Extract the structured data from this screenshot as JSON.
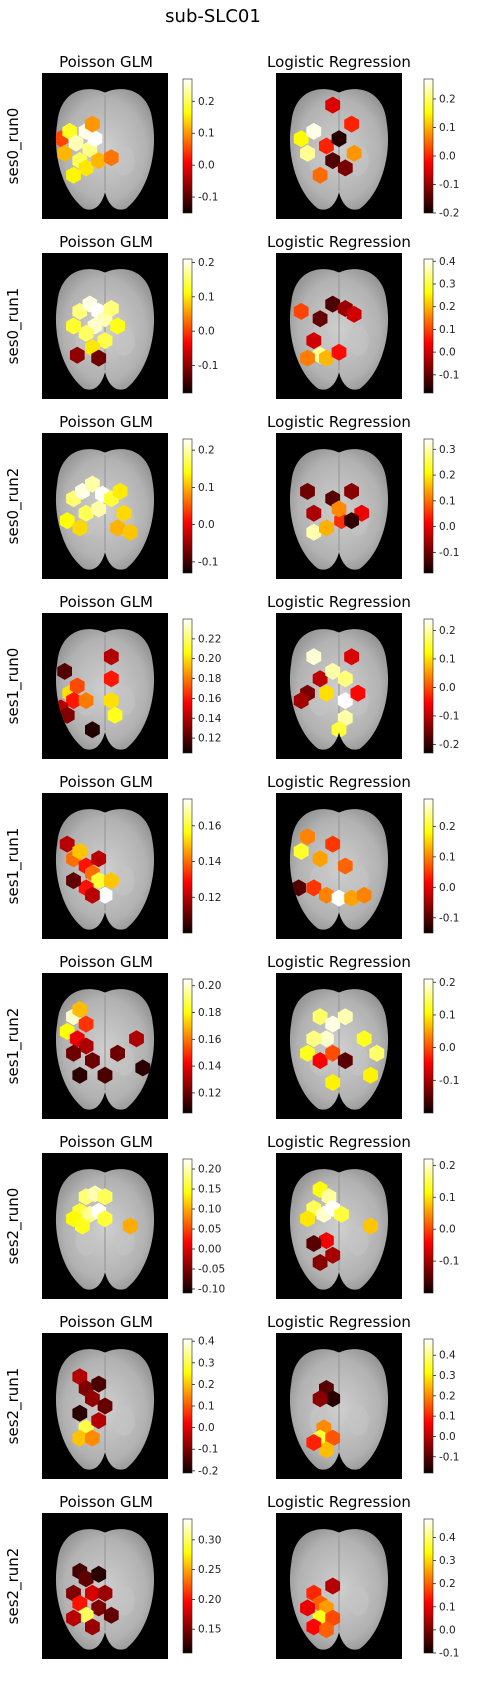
{
  "figure_title": "sub-SLC01",
  "colormap": "hot",
  "chart_data": [
    {
      "type": "heatmap",
      "row": "ses0_run0",
      "title": "Poisson GLM",
      "colorbar": {
        "vmin": -0.15,
        "vmax": 0.27,
        "ticks": [
          "0.2",
          "0.1",
          "0.0",
          "-0.1"
        ]
      },
      "blobs": [
        [
          0.15,
          0.45,
          0.05
        ],
        [
          0.18,
          0.55,
          0.12
        ],
        [
          0.22,
          0.4,
          0.18
        ],
        [
          0.27,
          0.48,
          0.24
        ],
        [
          0.3,
          0.6,
          0.2
        ],
        [
          0.35,
          0.4,
          0.26
        ],
        [
          0.38,
          0.52,
          0.22
        ],
        [
          0.42,
          0.45,
          0.27
        ],
        [
          0.35,
          0.65,
          0.15
        ],
        [
          0.45,
          0.6,
          0.12
        ],
        [
          0.55,
          0.58,
          0.08
        ],
        [
          0.25,
          0.7,
          0.16
        ],
        [
          0.4,
          0.35,
          0.1
        ]
      ]
    },
    {
      "type": "heatmap",
      "row": "ses0_run0",
      "title": "Logistic Regression",
      "colorbar": {
        "vmin": -0.2,
        "vmax": 0.27,
        "ticks": [
          "0.2",
          "0.1",
          "0.0",
          "-0.1",
          "-0.2"
        ]
      },
      "blobs": [
        [
          0.45,
          0.22,
          -0.05
        ],
        [
          0.2,
          0.45,
          0.15
        ],
        [
          0.25,
          0.55,
          0.22
        ],
        [
          0.3,
          0.4,
          0.26
        ],
        [
          0.4,
          0.5,
          0.0
        ],
        [
          0.45,
          0.6,
          -0.15
        ],
        [
          0.5,
          0.45,
          -0.18
        ],
        [
          0.55,
          0.65,
          -0.12
        ],
        [
          0.62,
          0.55,
          0.08
        ],
        [
          0.6,
          0.35,
          0.0
        ],
        [
          0.35,
          0.7,
          0.05
        ]
      ]
    },
    {
      "type": "heatmap",
      "row": "ses0_run1",
      "title": "Poisson GLM",
      "colorbar": {
        "vmin": -0.18,
        "vmax": 0.21,
        "ticks": [
          "0.2",
          "0.1",
          "0.0",
          "-0.1"
        ]
      },
      "blobs": [
        [
          0.3,
          0.4,
          0.16
        ],
        [
          0.38,
          0.35,
          0.2
        ],
        [
          0.45,
          0.4,
          0.21
        ],
        [
          0.5,
          0.45,
          0.18
        ],
        [
          0.55,
          0.38,
          0.16
        ],
        [
          0.42,
          0.5,
          0.19
        ],
        [
          0.35,
          0.55,
          0.15
        ],
        [
          0.25,
          0.5,
          0.13
        ],
        [
          0.6,
          0.5,
          0.12
        ],
        [
          0.5,
          0.6,
          0.14
        ],
        [
          0.4,
          0.65,
          0.1
        ],
        [
          0.28,
          0.7,
          -0.1
        ],
        [
          0.45,
          0.72,
          -0.12
        ]
      ]
    },
    {
      "type": "heatmap",
      "row": "ses0_run1",
      "title": "Logistic Regression",
      "colorbar": {
        "vmin": -0.18,
        "vmax": 0.41,
        "ticks": [
          "0.4",
          "0.3",
          "0.2",
          "0.1",
          "0.0",
          "-0.1"
        ]
      },
      "blobs": [
        [
          0.2,
          0.4,
          0.1
        ],
        [
          0.35,
          0.45,
          -0.1
        ],
        [
          0.45,
          0.35,
          -0.12
        ],
        [
          0.55,
          0.38,
          -0.05
        ],
        [
          0.62,
          0.42,
          0.0
        ],
        [
          0.3,
          0.6,
          0.0
        ],
        [
          0.35,
          0.7,
          0.35
        ],
        [
          0.25,
          0.72,
          0.15
        ],
        [
          0.4,
          0.72,
          0.2
        ],
        [
          0.5,
          0.68,
          0.05
        ]
      ]
    },
    {
      "type": "heatmap",
      "row": "ses0_run2",
      "title": "Poisson GLM",
      "colorbar": {
        "vmin": -0.13,
        "vmax": 0.23,
        "ticks": [
          "0.2",
          "0.1",
          "0.0",
          "-0.1"
        ]
      },
      "blobs": [
        [
          0.25,
          0.45,
          0.18
        ],
        [
          0.32,
          0.4,
          0.22
        ],
        [
          0.4,
          0.35,
          0.2
        ],
        [
          0.48,
          0.42,
          0.23
        ],
        [
          0.55,
          0.45,
          0.16
        ],
        [
          0.62,
          0.4,
          0.13
        ],
        [
          0.35,
          0.55,
          0.17
        ],
        [
          0.45,
          0.52,
          0.2
        ],
        [
          0.65,
          0.55,
          0.12
        ],
        [
          0.6,
          0.65,
          0.1
        ],
        [
          0.7,
          0.68,
          0.11
        ],
        [
          0.2,
          0.6,
          0.14
        ],
        [
          0.3,
          0.65,
          0.12
        ]
      ]
    },
    {
      "type": "heatmap",
      "row": "ses0_run2",
      "title": "Logistic Regression",
      "colorbar": {
        "vmin": -0.18,
        "vmax": 0.34,
        "ticks": [
          "0.3",
          "0.2",
          "0.1",
          "0.0",
          "-0.1"
        ]
      },
      "blobs": [
        [
          0.25,
          0.4,
          -0.1
        ],
        [
          0.3,
          0.55,
          -0.05
        ],
        [
          0.45,
          0.45,
          -0.12
        ],
        [
          0.52,
          0.6,
          0.05
        ],
        [
          0.6,
          0.4,
          -0.08
        ],
        [
          0.68,
          0.55,
          0.0
        ],
        [
          0.3,
          0.68,
          0.3
        ],
        [
          0.4,
          0.65,
          0.15
        ],
        [
          0.5,
          0.52,
          0.12
        ],
        [
          0.6,
          0.6,
          -0.15
        ]
      ]
    },
    {
      "type": "heatmap",
      "row": "ses1_run0",
      "title": "Poisson GLM",
      "colorbar": {
        "vmin": 0.105,
        "vmax": 0.24,
        "ticks": [
          "0.22",
          "0.20",
          "0.18",
          "0.16",
          "0.14",
          "0.12"
        ]
      },
      "blobs": [
        [
          0.18,
          0.4,
          0.12
        ],
        [
          0.22,
          0.55,
          0.2
        ],
        [
          0.28,
          0.5,
          0.17
        ],
        [
          0.25,
          0.6,
          0.16
        ],
        [
          0.35,
          0.6,
          0.18
        ],
        [
          0.15,
          0.65,
          0.14
        ],
        [
          0.2,
          0.7,
          0.13
        ],
        [
          0.55,
          0.3,
          0.14
        ],
        [
          0.55,
          0.45,
          0.16
        ],
        [
          0.55,
          0.6,
          0.2
        ],
        [
          0.58,
          0.7,
          0.21
        ],
        [
          0.4,
          0.8,
          0.11
        ]
      ]
    },
    {
      "type": "heatmap",
      "row": "ses1_run0",
      "title": "Logistic Regression",
      "colorbar": {
        "vmin": -0.23,
        "vmax": 0.24,
        "ticks": [
          "0.2",
          "0.1",
          "0.0",
          "-0.1",
          "-0.2"
        ]
      },
      "blobs": [
        [
          0.3,
          0.3,
          0.22
        ],
        [
          0.35,
          0.45,
          -0.1
        ],
        [
          0.25,
          0.55,
          -0.15
        ],
        [
          0.2,
          0.6,
          -0.12
        ],
        [
          0.45,
          0.4,
          0.2
        ],
        [
          0.55,
          0.45,
          0.18
        ],
        [
          0.4,
          0.55,
          0.1
        ],
        [
          0.55,
          0.6,
          0.24
        ],
        [
          0.55,
          0.72,
          0.2
        ],
        [
          0.5,
          0.8,
          0.15
        ],
        [
          0.65,
          0.55,
          -0.05
        ],
        [
          0.6,
          0.3,
          -0.08
        ]
      ]
    },
    {
      "type": "heatmap",
      "row": "ses1_run1",
      "title": "Poisson GLM",
      "colorbar": {
        "vmin": 0.1,
        "vmax": 0.175,
        "ticks": [
          "0.16",
          "0.14",
          "0.12"
        ]
      },
      "blobs": [
        [
          0.2,
          0.35,
          0.12
        ],
        [
          0.25,
          0.45,
          0.14
        ],
        [
          0.3,
          0.4,
          0.15
        ],
        [
          0.35,
          0.5,
          0.13
        ],
        [
          0.4,
          0.55,
          0.14
        ],
        [
          0.45,
          0.6,
          0.16
        ],
        [
          0.35,
          0.65,
          0.13
        ],
        [
          0.25,
          0.6,
          0.11
        ],
        [
          0.5,
          0.7,
          0.175
        ],
        [
          0.4,
          0.7,
          0.12
        ],
        [
          0.55,
          0.6,
          0.15
        ],
        [
          0.45,
          0.45,
          0.12
        ]
      ]
    },
    {
      "type": "heatmap",
      "row": "ses1_run1",
      "title": "Logistic Regression",
      "colorbar": {
        "vmin": -0.15,
        "vmax": 0.29,
        "ticks": [
          "0.2",
          "0.1",
          "0.0",
          "-0.1"
        ]
      },
      "blobs": [
        [
          0.2,
          0.4,
          0.2
        ],
        [
          0.25,
          0.3,
          0.1
        ],
        [
          0.35,
          0.45,
          0.12
        ],
        [
          0.45,
          0.35,
          0.05
        ],
        [
          0.55,
          0.5,
          0.08
        ],
        [
          0.3,
          0.65,
          0.05
        ],
        [
          0.4,
          0.7,
          0.1
        ],
        [
          0.5,
          0.72,
          0.29
        ],
        [
          0.6,
          0.72,
          0.12
        ],
        [
          0.7,
          0.7,
          0.1
        ],
        [
          0.18,
          0.65,
          -0.1
        ]
      ]
    },
    {
      "type": "heatmap",
      "row": "ses1_run2",
      "title": "Poisson GLM",
      "colorbar": {
        "vmin": 0.105,
        "vmax": 0.205,
        "ticks": [
          "0.20",
          "0.18",
          "0.16",
          "0.14",
          "0.12"
        ]
      },
      "blobs": [
        [
          0.25,
          0.3,
          0.2
        ],
        [
          0.3,
          0.25,
          0.17
        ],
        [
          0.35,
          0.35,
          0.15
        ],
        [
          0.2,
          0.4,
          0.18
        ],
        [
          0.28,
          0.45,
          0.14
        ],
        [
          0.35,
          0.5,
          0.13
        ],
        [
          0.25,
          0.55,
          0.12
        ],
        [
          0.4,
          0.6,
          0.12
        ],
        [
          0.5,
          0.7,
          0.115
        ],
        [
          0.6,
          0.55,
          0.12
        ],
        [
          0.75,
          0.45,
          0.13
        ],
        [
          0.8,
          0.65,
          0.11
        ],
        [
          0.3,
          0.7,
          0.11
        ]
      ]
    },
    {
      "type": "heatmap",
      "row": "ses1_run2",
      "title": "Logistic Regression",
      "colorbar": {
        "vmin": -0.2,
        "vmax": 0.21,
        "ticks": [
          "0.2",
          "0.1",
          "0.0",
          "-0.1"
        ]
      },
      "blobs": [
        [
          0.35,
          0.3,
          0.15
        ],
        [
          0.45,
          0.35,
          0.2
        ],
        [
          0.55,
          0.3,
          0.18
        ],
        [
          0.4,
          0.45,
          0.19
        ],
        [
          0.3,
          0.45,
          0.16
        ],
        [
          0.25,
          0.55,
          0.12
        ],
        [
          0.35,
          0.6,
          -0.05
        ],
        [
          0.45,
          0.55,
          0.0
        ],
        [
          0.55,
          0.6,
          -0.15
        ],
        [
          0.45,
          0.75,
          0.1
        ],
        [
          0.7,
          0.45,
          0.12
        ],
        [
          0.8,
          0.55,
          0.15
        ],
        [
          0.75,
          0.7,
          0.1
        ]
      ]
    },
    {
      "type": "heatmap",
      "row": "ses2_run0",
      "title": "Poisson GLM",
      "colorbar": {
        "vmin": -0.11,
        "vmax": 0.225,
        "ticks": [
          "0.20",
          "0.15",
          "0.10",
          "0.05",
          "0.00",
          "-0.05",
          "-0.10"
        ]
      },
      "blobs": [
        [
          0.35,
          0.3,
          0.18
        ],
        [
          0.42,
          0.28,
          0.2
        ],
        [
          0.3,
          0.4,
          0.16
        ],
        [
          0.38,
          0.42,
          0.19
        ],
        [
          0.45,
          0.4,
          0.225
        ],
        [
          0.25,
          0.45,
          0.14
        ],
        [
          0.32,
          0.5,
          0.15
        ],
        [
          0.5,
          0.3,
          0.17
        ],
        [
          0.5,
          0.45,
          0.16
        ],
        [
          0.7,
          0.5,
          0.1
        ]
      ]
    },
    {
      "type": "heatmap",
      "row": "ses2_run0",
      "title": "Logistic Regression",
      "colorbar": {
        "vmin": -0.2,
        "vmax": 0.22,
        "ticks": [
          "0.2",
          "0.1",
          "0.0",
          "-0.1"
        ]
      },
      "blobs": [
        [
          0.35,
          0.25,
          0.12
        ],
        [
          0.42,
          0.3,
          0.18
        ],
        [
          0.3,
          0.38,
          0.15
        ],
        [
          0.38,
          0.42,
          0.2
        ],
        [
          0.45,
          0.38,
          0.22
        ],
        [
          0.25,
          0.45,
          0.1
        ],
        [
          0.52,
          0.42,
          0.14
        ],
        [
          0.4,
          0.6,
          -0.05
        ],
        [
          0.3,
          0.62,
          -0.15
        ],
        [
          0.45,
          0.7,
          -0.1
        ],
        [
          0.35,
          0.75,
          -0.12
        ],
        [
          0.75,
          0.5,
          0.08
        ]
      ]
    },
    {
      "type": "heatmap",
      "row": "ses2_run1",
      "title": "Poisson GLM",
      "colorbar": {
        "vmin": -0.21,
        "vmax": 0.41,
        "ticks": [
          "0.4",
          "0.3",
          "0.2",
          "0.1",
          "0.0",
          "-0.1",
          "-0.2"
        ]
      },
      "blobs": [
        [
          0.3,
          0.3,
          -0.05
        ],
        [
          0.35,
          0.38,
          -0.1
        ],
        [
          0.45,
          0.35,
          -0.15
        ],
        [
          0.4,
          0.45,
          -0.08
        ],
        [
          0.5,
          0.5,
          -0.12
        ],
        [
          0.3,
          0.55,
          -0.18
        ],
        [
          0.35,
          0.65,
          0.3
        ],
        [
          0.3,
          0.72,
          0.2
        ],
        [
          0.4,
          0.72,
          0.15
        ],
        [
          0.45,
          0.6,
          -0.05
        ]
      ]
    },
    {
      "type": "heatmap",
      "row": "ses2_run1",
      "title": "Logistic Regression",
      "colorbar": {
        "vmin": -0.18,
        "vmax": 0.48,
        "ticks": [
          "0.4",
          "0.3",
          "0.2",
          "0.1",
          "0.0",
          "-0.1"
        ]
      },
      "blobs": [
        [
          0.4,
          0.38,
          -0.1
        ],
        [
          0.45,
          0.45,
          -0.15
        ],
        [
          0.35,
          0.45,
          -0.05
        ],
        [
          0.38,
          0.65,
          0.2
        ],
        [
          0.35,
          0.72,
          0.35
        ],
        [
          0.45,
          0.72,
          0.15
        ],
        [
          0.4,
          0.8,
          0.25
        ],
        [
          0.3,
          0.75,
          0.1
        ]
      ]
    },
    {
      "type": "heatmap",
      "row": "ses2_run2",
      "title": "Poisson GLM",
      "colorbar": {
        "vmin": 0.11,
        "vmax": 0.335,
        "ticks": [
          "0.30",
          "0.25",
          "0.20",
          "0.15"
        ]
      },
      "blobs": [
        [
          0.3,
          0.4,
          0.13
        ],
        [
          0.35,
          0.45,
          0.14
        ],
        [
          0.45,
          0.42,
          0.12
        ],
        [
          0.25,
          0.55,
          0.15
        ],
        [
          0.4,
          0.55,
          0.18
        ],
        [
          0.5,
          0.55,
          0.16
        ],
        [
          0.3,
          0.62,
          0.2
        ],
        [
          0.45,
          0.65,
          0.15
        ],
        [
          0.35,
          0.7,
          0.3
        ],
        [
          0.55,
          0.7,
          0.14
        ],
        [
          0.25,
          0.72,
          0.17
        ],
        [
          0.4,
          0.78,
          0.16
        ]
      ]
    },
    {
      "type": "heatmap",
      "row": "ses2_run2",
      "title": "Logistic Regression",
      "colorbar": {
        "vmin": -0.1,
        "vmax": 0.48,
        "ticks": [
          "0.4",
          "0.3",
          "0.2",
          "0.1",
          "0.0",
          "-0.1"
        ]
      },
      "blobs": [
        [
          0.3,
          0.55,
          0.15
        ],
        [
          0.35,
          0.62,
          0.2
        ],
        [
          0.25,
          0.65,
          0.1
        ],
        [
          0.4,
          0.65,
          0.25
        ],
        [
          0.35,
          0.72,
          0.35
        ],
        [
          0.45,
          0.72,
          0.18
        ],
        [
          0.3,
          0.78,
          0.12
        ],
        [
          0.4,
          0.8,
          0.2
        ],
        [
          0.45,
          0.5,
          0.05
        ]
      ]
    }
  ]
}
